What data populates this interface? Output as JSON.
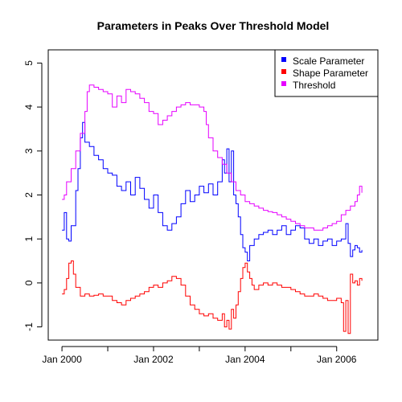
{
  "chart_data": {
    "type": "line",
    "title": "Parameters in Peaks Over Threshold Model",
    "xlabel": "",
    "ylabel": "",
    "x_ticks": [
      "Jan 2000",
      "Jan 2002",
      "Jan 2004",
      "Jan 2006"
    ],
    "y_ticks": [
      "-1",
      "0",
      "1",
      "2",
      "3",
      "4",
      "5"
    ],
    "xlim": [
      1999.7,
      2006.9
    ],
    "ylim": [
      -1.3,
      5.3
    ],
    "grid": false,
    "legend_position": "top-right",
    "series": [
      {
        "name": "Scale Parameter",
        "color": "#0000ff",
        "points": [
          [
            2000.0,
            1.2
          ],
          [
            2000.05,
            1.6
          ],
          [
            2000.1,
            1.0
          ],
          [
            2000.15,
            0.95
          ],
          [
            2000.2,
            1.3
          ],
          [
            2000.3,
            2.1
          ],
          [
            2000.35,
            2.6
          ],
          [
            2000.4,
            3.3
          ],
          [
            2000.45,
            3.65
          ],
          [
            2000.5,
            3.2
          ],
          [
            2000.6,
            3.1
          ],
          [
            2000.7,
            2.9
          ],
          [
            2000.8,
            2.8
          ],
          [
            2000.9,
            2.6
          ],
          [
            2001.0,
            2.5
          ],
          [
            2001.1,
            2.45
          ],
          [
            2001.2,
            2.2
          ],
          [
            2001.3,
            2.1
          ],
          [
            2001.4,
            2.3
          ],
          [
            2001.5,
            2.0
          ],
          [
            2001.6,
            2.4
          ],
          [
            2001.7,
            2.15
          ],
          [
            2001.8,
            1.9
          ],
          [
            2001.9,
            1.7
          ],
          [
            2002.0,
            2.0
          ],
          [
            2002.1,
            1.6
          ],
          [
            2002.2,
            1.3
          ],
          [
            2002.3,
            1.2
          ],
          [
            2002.4,
            1.35
          ],
          [
            2002.5,
            1.5
          ],
          [
            2002.6,
            1.8
          ],
          [
            2002.7,
            2.1
          ],
          [
            2002.8,
            1.85
          ],
          [
            2002.9,
            2.0
          ],
          [
            2003.0,
            2.2
          ],
          [
            2003.1,
            2.05
          ],
          [
            2003.2,
            2.25
          ],
          [
            2003.3,
            2.0
          ],
          [
            2003.4,
            2.3
          ],
          [
            2003.5,
            2.8
          ],
          [
            2003.55,
            2.5
          ],
          [
            2003.6,
            3.05
          ],
          [
            2003.65,
            2.3
          ],
          [
            2003.7,
            3.0
          ],
          [
            2003.75,
            2.0
          ],
          [
            2003.8,
            1.8
          ],
          [
            2003.85,
            1.5
          ],
          [
            2003.9,
            1.1
          ],
          [
            2003.95,
            0.8
          ],
          [
            2004.0,
            0.7
          ],
          [
            2004.05,
            0.5
          ],
          [
            2004.1,
            0.85
          ],
          [
            2004.2,
            1.0
          ],
          [
            2004.3,
            1.1
          ],
          [
            2004.4,
            1.15
          ],
          [
            2004.5,
            1.2
          ],
          [
            2004.6,
            1.1
          ],
          [
            2004.7,
            1.2
          ],
          [
            2004.8,
            1.3
          ],
          [
            2004.9,
            1.1
          ],
          [
            2005.0,
            1.2
          ],
          [
            2005.1,
            1.3
          ],
          [
            2005.2,
            1.25
          ],
          [
            2005.3,
            1.0
          ],
          [
            2005.4,
            0.9
          ],
          [
            2005.5,
            1.0
          ],
          [
            2005.6,
            0.85
          ],
          [
            2005.7,
            0.95
          ],
          [
            2005.8,
            1.0
          ],
          [
            2005.9,
            0.85
          ],
          [
            2006.0,
            0.95
          ],
          [
            2006.1,
            1.0
          ],
          [
            2006.2,
            1.35
          ],
          [
            2006.25,
            0.9
          ],
          [
            2006.3,
            0.6
          ],
          [
            2006.35,
            0.75
          ],
          [
            2006.4,
            0.85
          ],
          [
            2006.45,
            0.8
          ],
          [
            2006.5,
            0.7
          ],
          [
            2006.55,
            0.75
          ]
        ]
      },
      {
        "name": "Shape Parameter",
        "color": "#ff0000",
        "points": [
          [
            2000.0,
            -0.25
          ],
          [
            2000.05,
            -0.15
          ],
          [
            2000.1,
            0.1
          ],
          [
            2000.15,
            0.45
          ],
          [
            2000.2,
            0.5
          ],
          [
            2000.25,
            0.2
          ],
          [
            2000.3,
            -0.1
          ],
          [
            2000.4,
            -0.3
          ],
          [
            2000.5,
            -0.25
          ],
          [
            2000.6,
            -0.3
          ],
          [
            2000.7,
            -0.28
          ],
          [
            2000.8,
            -0.25
          ],
          [
            2000.9,
            -0.3
          ],
          [
            2001.0,
            -0.3
          ],
          [
            2001.1,
            -0.4
          ],
          [
            2001.2,
            -0.45
          ],
          [
            2001.3,
            -0.5
          ],
          [
            2001.4,
            -0.4
          ],
          [
            2001.5,
            -0.35
          ],
          [
            2001.6,
            -0.3
          ],
          [
            2001.7,
            -0.25
          ],
          [
            2001.8,
            -0.2
          ],
          [
            2001.9,
            -0.1
          ],
          [
            2002.0,
            -0.05
          ],
          [
            2002.1,
            -0.1
          ],
          [
            2002.2,
            0.0
          ],
          [
            2002.3,
            0.05
          ],
          [
            2002.4,
            0.15
          ],
          [
            2002.5,
            0.1
          ],
          [
            2002.6,
            -0.05
          ],
          [
            2002.7,
            -0.3
          ],
          [
            2002.8,
            -0.5
          ],
          [
            2002.9,
            -0.6
          ],
          [
            2003.0,
            -0.7
          ],
          [
            2003.1,
            -0.75
          ],
          [
            2003.2,
            -0.7
          ],
          [
            2003.3,
            -0.8
          ],
          [
            2003.4,
            -0.85
          ],
          [
            2003.5,
            -0.7
          ],
          [
            2003.55,
            -1.0
          ],
          [
            2003.6,
            -0.85
          ],
          [
            2003.65,
            -1.05
          ],
          [
            2003.7,
            -0.6
          ],
          [
            2003.75,
            -0.8
          ],
          [
            2003.8,
            -0.5
          ],
          [
            2003.85,
            -0.2
          ],
          [
            2003.9,
            0.1
          ],
          [
            2003.95,
            0.35
          ],
          [
            2004.0,
            0.45
          ],
          [
            2004.05,
            0.25
          ],
          [
            2004.1,
            0.1
          ],
          [
            2004.15,
            -0.05
          ],
          [
            2004.2,
            -0.15
          ],
          [
            2004.3,
            -0.05
          ],
          [
            2004.4,
            0.0
          ],
          [
            2004.5,
            -0.05
          ],
          [
            2004.6,
            0.0
          ],
          [
            2004.7,
            -0.05
          ],
          [
            2004.8,
            -0.1
          ],
          [
            2004.9,
            -0.1
          ],
          [
            2005.0,
            -0.15
          ],
          [
            2005.1,
            -0.2
          ],
          [
            2005.2,
            -0.25
          ],
          [
            2005.3,
            -0.3
          ],
          [
            2005.4,
            -0.3
          ],
          [
            2005.5,
            -0.25
          ],
          [
            2005.6,
            -0.3
          ],
          [
            2005.7,
            -0.35
          ],
          [
            2005.8,
            -0.4
          ],
          [
            2005.9,
            -0.4
          ],
          [
            2006.0,
            -0.35
          ],
          [
            2006.1,
            -0.45
          ],
          [
            2006.15,
            -1.1
          ],
          [
            2006.2,
            -0.4
          ],
          [
            2006.25,
            -1.15
          ],
          [
            2006.3,
            0.2
          ],
          [
            2006.35,
            0.0
          ],
          [
            2006.4,
            0.05
          ],
          [
            2006.45,
            -0.05
          ],
          [
            2006.5,
            0.1
          ],
          [
            2006.55,
            0.05
          ]
        ]
      },
      {
        "name": "Threshold",
        "color": "#e600ff",
        "points": [
          [
            2000.0,
            1.9
          ],
          [
            2000.05,
            2.0
          ],
          [
            2000.1,
            2.3
          ],
          [
            2000.2,
            2.6
          ],
          [
            2000.3,
            3.0
          ],
          [
            2000.4,
            3.4
          ],
          [
            2000.5,
            3.9
          ],
          [
            2000.55,
            4.35
          ],
          [
            2000.6,
            4.5
          ],
          [
            2000.7,
            4.45
          ],
          [
            2000.8,
            4.4
          ],
          [
            2000.9,
            4.35
          ],
          [
            2001.0,
            4.3
          ],
          [
            2001.1,
            4.0
          ],
          [
            2001.2,
            4.25
          ],
          [
            2001.3,
            4.1
          ],
          [
            2001.4,
            4.4
          ],
          [
            2001.5,
            4.35
          ],
          [
            2001.6,
            4.3
          ],
          [
            2001.7,
            4.2
          ],
          [
            2001.8,
            4.1
          ],
          [
            2001.9,
            3.9
          ],
          [
            2002.0,
            3.85
          ],
          [
            2002.1,
            3.6
          ],
          [
            2002.2,
            3.7
          ],
          [
            2002.3,
            3.8
          ],
          [
            2002.4,
            3.9
          ],
          [
            2002.5,
            4.0
          ],
          [
            2002.6,
            4.05
          ],
          [
            2002.7,
            4.1
          ],
          [
            2002.8,
            4.05
          ],
          [
            2002.9,
            4.05
          ],
          [
            2003.0,
            4.0
          ],
          [
            2003.1,
            3.9
          ],
          [
            2003.15,
            3.6
          ],
          [
            2003.2,
            3.3
          ],
          [
            2003.3,
            3.0
          ],
          [
            2003.4,
            2.85
          ],
          [
            2003.5,
            2.7
          ],
          [
            2003.6,
            2.5
          ],
          [
            2003.7,
            2.3
          ],
          [
            2003.8,
            2.1
          ],
          [
            2003.9,
            2.0
          ],
          [
            2004.0,
            1.85
          ],
          [
            2004.1,
            1.8
          ],
          [
            2004.2,
            1.75
          ],
          [
            2004.3,
            1.7
          ],
          [
            2004.4,
            1.65
          ],
          [
            2004.5,
            1.62
          ],
          [
            2004.6,
            1.6
          ],
          [
            2004.7,
            1.55
          ],
          [
            2004.8,
            1.5
          ],
          [
            2004.9,
            1.45
          ],
          [
            2005.0,
            1.4
          ],
          [
            2005.1,
            1.35
          ],
          [
            2005.2,
            1.3
          ],
          [
            2005.3,
            1.25
          ],
          [
            2005.4,
            1.25
          ],
          [
            2005.5,
            1.2
          ],
          [
            2005.6,
            1.2
          ],
          [
            2005.7,
            1.25
          ],
          [
            2005.8,
            1.3
          ],
          [
            2005.9,
            1.35
          ],
          [
            2006.0,
            1.4
          ],
          [
            2006.1,
            1.55
          ],
          [
            2006.2,
            1.65
          ],
          [
            2006.3,
            1.75
          ],
          [
            2006.4,
            1.85
          ],
          [
            2006.45,
            2.0
          ],
          [
            2006.5,
            2.2
          ],
          [
            2006.55,
            2.05
          ]
        ]
      }
    ]
  }
}
